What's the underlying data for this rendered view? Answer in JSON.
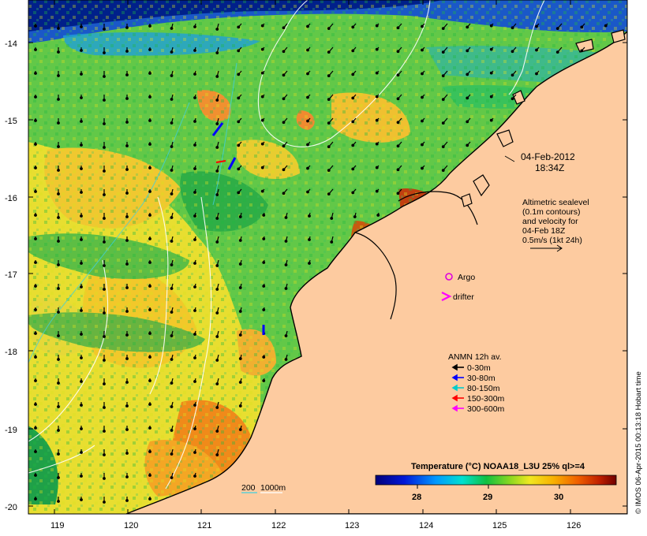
{
  "map": {
    "lat_ticks": [
      "-14",
      "-15",
      "-16",
      "-17",
      "-18",
      "-19",
      "-20"
    ],
    "lon_ticks": [
      "119",
      "120",
      "121",
      "122",
      "123",
      "124",
      "125",
      "126"
    ],
    "lat_range": [
      -20.1,
      -13.6
    ],
    "lon_range": [
      118.6,
      126.7
    ]
  },
  "annotations": {
    "datetime_line1": "04-Feb-2012",
    "datetime_line2": "18:34Z",
    "altimetry_lines": [
      "Altimetric sealevel",
      "(0.1m contours)",
      "and velocity for",
      "04-Feb 18Z",
      "0.5m/s (1kt 24h)"
    ],
    "argo_label": "Argo",
    "drifter_label": "drifter",
    "anmn_title": "ANMN 12h av.",
    "anmn_items": [
      {
        "label": "0-30m",
        "color": "#000000"
      },
      {
        "label": "30-80m",
        "color": "#0000ff"
      },
      {
        "label": "80-150m",
        "color": "#00cccc"
      },
      {
        "label": "150-300m",
        "color": "#ff0000"
      },
      {
        "label": "300-600m",
        "color": "#ff00ff"
      }
    ],
    "bathy_labels": [
      "200",
      "1000m"
    ],
    "credit": "© IMOS 06-Apr-2015 00:13:18 Hobart time"
  },
  "colorbar": {
    "title": "Temperature (°C) NOAA18_L3U 25% ql>=4",
    "tick_labels": [
      "28",
      "29",
      "30"
    ],
    "range": [
      27.4,
      30.8
    ]
  },
  "colors": {
    "land": "#fdcba0",
    "coast": "#000000",
    "argo": "#dd00dd",
    "drifter": "#ff00ff"
  }
}
